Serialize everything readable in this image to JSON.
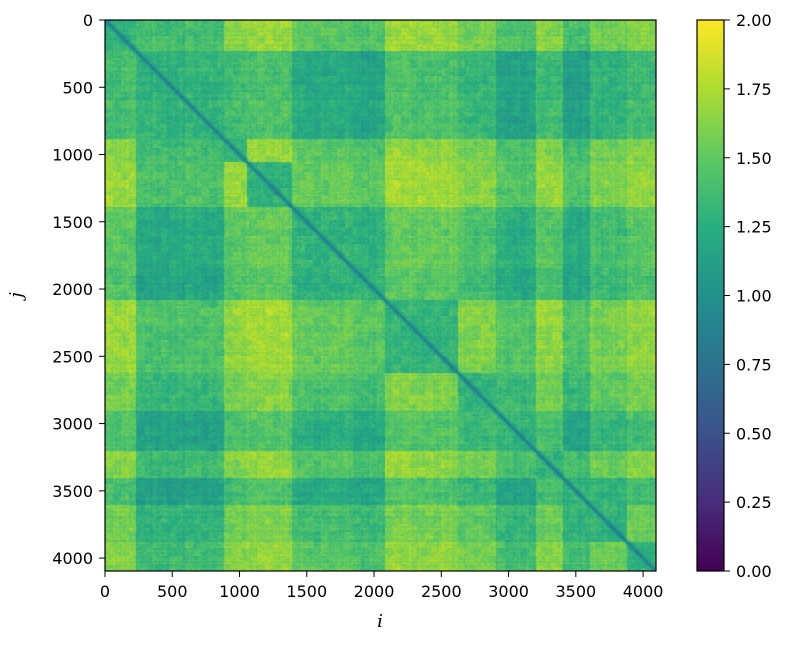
{
  "chart_data": {
    "type": "heatmap",
    "title": "",
    "xlabel": "i",
    "ylabel": "j",
    "xlim": [
      0,
      4096
    ],
    "ylim": [
      4096,
      0
    ],
    "x_ticks": [
      {
        "value": 0,
        "label": "0"
      },
      {
        "value": 500,
        "label": "500"
      },
      {
        "value": 1000,
        "label": "1000"
      },
      {
        "value": 1500,
        "label": "1500"
      },
      {
        "value": 2000,
        "label": "2000"
      },
      {
        "value": 2500,
        "label": "2500"
      },
      {
        "value": 3000,
        "label": "3000"
      },
      {
        "value": 3500,
        "label": "3500"
      },
      {
        "value": 4000,
        "label": "4000"
      }
    ],
    "y_ticks": [
      {
        "value": 0,
        "label": "0"
      },
      {
        "value": 500,
        "label": "500"
      },
      {
        "value": 1000,
        "label": "1000"
      },
      {
        "value": 1500,
        "label": "1500"
      },
      {
        "value": 2000,
        "label": "2000"
      },
      {
        "value": 2500,
        "label": "2500"
      },
      {
        "value": 3000,
        "label": "3000"
      },
      {
        "value": 3500,
        "label": "3500"
      },
      {
        "value": 4000,
        "label": "4000"
      }
    ],
    "colormap": "viridis",
    "colorbar": {
      "range": [
        0.0,
        2.0
      ],
      "ticks": [
        {
          "value": 0.0,
          "label": "0.00"
        },
        {
          "value": 0.25,
          "label": "0.25"
        },
        {
          "value": 0.5,
          "label": "0.50"
        },
        {
          "value": 0.75,
          "label": "0.75"
        },
        {
          "value": 1.0,
          "label": "1.00"
        },
        {
          "value": 1.25,
          "label": "1.25"
        },
        {
          "value": 1.5,
          "label": "1.50"
        },
        {
          "value": 1.75,
          "label": "1.75"
        },
        {
          "value": 2.0,
          "label": "2.00"
        }
      ]
    },
    "matrix": {
      "size": 4096,
      "symmetric": true,
      "diagonal_value": 0.85,
      "block_boundaries": [
        0,
        230,
        880,
        1050,
        1390,
        1850,
        2080,
        2620,
        2900,
        3200,
        3400,
        3600,
        3880,
        4096
      ],
      "block_offsets": [
        0.12,
        -0.15,
        0.1,
        0.15,
        -0.05,
        -0.1,
        0.14,
        0.05,
        -0.12,
        0.1,
        -0.14,
        0.02,
        0.1
      ],
      "base_value": 1.42,
      "grid_colors": [
        "#440154",
        "#472d7b",
        "#3b528b",
        "#2c728e",
        "#21918c",
        "#28ae80",
        "#5ec962",
        "#addc30",
        "#fde725"
      ]
    }
  }
}
